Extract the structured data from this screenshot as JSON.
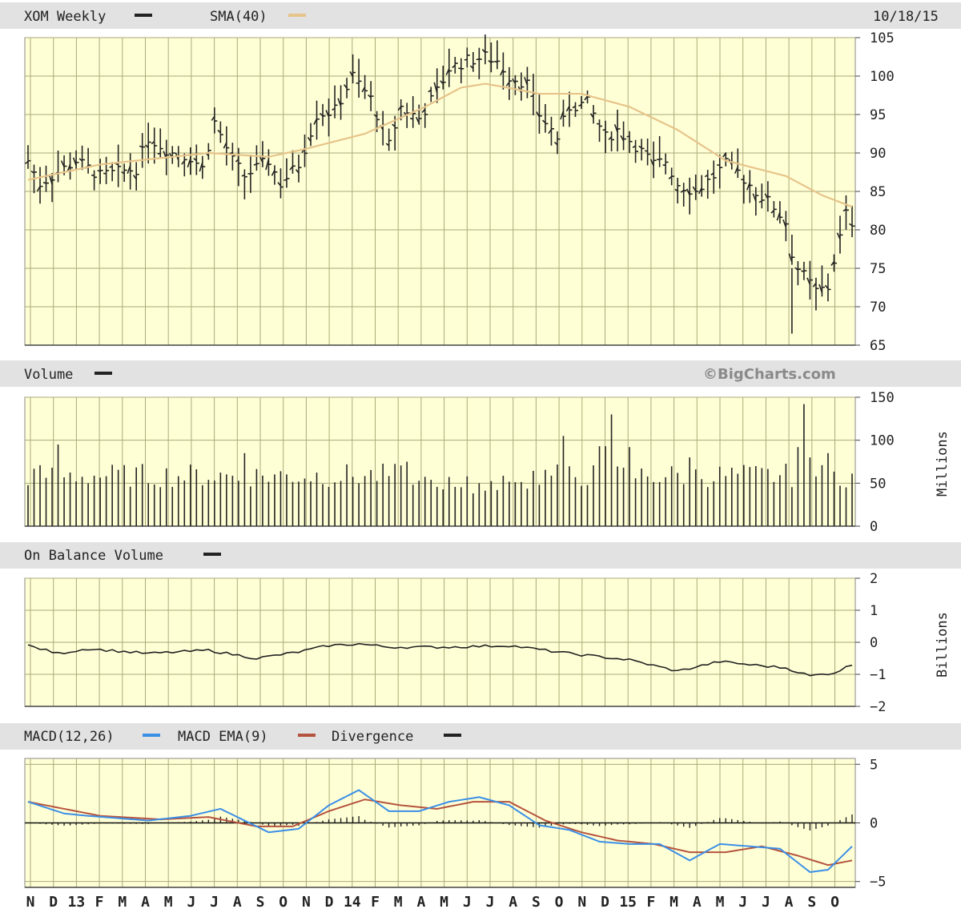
{
  "date_label": "10/18/15",
  "watermark": "©BigCharts.com",
  "months": [
    "N",
    "D",
    "13",
    "F",
    "M",
    "A",
    "M",
    "J",
    "J",
    "A",
    "S",
    "O",
    "N",
    "D",
    "14",
    "F",
    "M",
    "A",
    "M",
    "J",
    "J",
    "A",
    "S",
    "O",
    "N",
    "D",
    "15",
    "F",
    "M",
    "A",
    "M",
    "J",
    "J",
    "A",
    "S",
    "O"
  ],
  "panels": {
    "price": {
      "title": "XOM Weekly",
      "sma_label": "SMA(40)",
      "ticks": [
        "105",
        "100",
        "95",
        "90",
        "85",
        "80",
        "75",
        "70",
        "65"
      ]
    },
    "volume": {
      "title": "Volume",
      "unit": "Millions",
      "ticks": [
        "150",
        "100",
        "50",
        "0"
      ]
    },
    "obv": {
      "title": "On Balance Volume",
      "unit": "Billions",
      "ticks": [
        "2",
        "1",
        "0",
        "−1",
        "−2"
      ]
    },
    "macd": {
      "title": "MACD(12,26)",
      "ema_label": "MACD EMA(9)",
      "div_label": "Divergence",
      "ticks": [
        "5",
        "0",
        "−5"
      ]
    }
  },
  "colors": {
    "panel_bg": "#ffffd6",
    "grid": "#aaaa7a",
    "header_bg": "#e2e2e2",
    "sma": "#e6c48a",
    "macd": "#3b8fe6",
    "ema": "#b5543e",
    "bar": "#222222"
  },
  "chart_data": [
    {
      "type": "bar",
      "title": "XOM Weekly",
      "x_axis": "weekly, Nov 2012 – Oct 2015",
      "ylim": [
        65,
        105
      ],
      "series": [
        {
          "name": "XOM Weekly",
          "anchors": [
            [
              0,
              89
            ],
            [
              2,
              86
            ],
            [
              8,
              89
            ],
            [
              12,
              87
            ],
            [
              18,
              88
            ],
            [
              20,
              92
            ],
            [
              24,
              90
            ],
            [
              27,
              89.5
            ],
            [
              29,
              88
            ],
            [
              31,
              94
            ],
            [
              34,
              89
            ],
            [
              36,
              87
            ],
            [
              40,
              89
            ],
            [
              42,
              86
            ],
            [
              45,
              88.5
            ],
            [
              48,
              95
            ],
            [
              51,
              95.5
            ],
            [
              54,
              100
            ],
            [
              57,
              97
            ],
            [
              60,
              91
            ],
            [
              62,
              96
            ],
            [
              65,
              94.5
            ],
            [
              68,
              98
            ],
            [
              70,
              101
            ],
            [
              73,
              102
            ],
            [
              76,
              102.5
            ],
            [
              78,
              102
            ],
            [
              80,
              100
            ],
            [
              83,
              99
            ],
            [
              85,
              95
            ],
            [
              88,
              92
            ],
            [
              90,
              96
            ],
            [
              93,
              96.5
            ],
            [
              96,
              92
            ],
            [
              98,
              93
            ],
            [
              101,
              91
            ],
            [
              104,
              88.5
            ],
            [
              106,
              89
            ],
            [
              108,
              86
            ],
            [
              111,
              85
            ],
            [
              114,
              87
            ],
            [
              116,
              88.5
            ],
            [
              118,
              87.5
            ],
            [
              121,
              85
            ],
            [
              124,
              83
            ],
            [
              126,
              81
            ],
            [
              127,
              77
            ],
            [
              128,
              75
            ],
            [
              130,
              73
            ],
            [
              131,
              72
            ],
            [
              133,
              72.5
            ],
            [
              134,
              76
            ],
            [
              136,
              82
            ],
            [
              137,
              81
            ]
          ]
        },
        {
          "name": "SMA(40)",
          "anchors": [
            [
              0,
              86.5
            ],
            [
              12,
              88.5
            ],
            [
              30,
              90
            ],
            [
              40,
              89.5
            ],
            [
              46,
              90.5
            ],
            [
              56,
              92.5
            ],
            [
              66,
              96
            ],
            [
              72,
              98.5
            ],
            [
              76,
              99
            ],
            [
              79,
              98.6
            ],
            [
              85,
              97.7
            ],
            [
              92,
              97.7
            ],
            [
              100,
              96
            ],
            [
              108,
              93
            ],
            [
              116,
              89
            ],
            [
              126,
              87
            ],
            [
              132,
              84.5
            ],
            [
              137,
              83
            ]
          ]
        }
      ]
    },
    {
      "type": "bar",
      "title": "Volume",
      "unit": "Millions",
      "ylim": [
        0,
        150
      ],
      "spikes": [
        [
          5,
          95
        ],
        [
          36,
          85
        ],
        [
          63,
          75
        ],
        [
          89,
          105
        ],
        [
          95,
          93
        ],
        [
          96,
          93
        ],
        [
          97,
          130
        ],
        [
          100,
          92
        ],
        [
          110,
          80
        ],
        [
          128,
          92
        ],
        [
          129,
          142
        ],
        [
          130,
          80
        ],
        [
          133,
          85
        ]
      ]
    },
    {
      "type": "line",
      "title": "On Balance Volume",
      "unit": "Billions",
      "ylim": [
        -2,
        2
      ],
      "anchors": [
        [
          0,
          -0.1
        ],
        [
          5,
          -0.35
        ],
        [
          10,
          -0.2
        ],
        [
          20,
          -0.35
        ],
        [
          30,
          -0.25
        ],
        [
          38,
          -0.5
        ],
        [
          45,
          -0.3
        ],
        [
          50,
          -0.1
        ],
        [
          55,
          -0.05
        ],
        [
          60,
          -0.15
        ],
        [
          70,
          -0.15
        ],
        [
          80,
          -0.1
        ],
        [
          90,
          -0.35
        ],
        [
          100,
          -0.55
        ],
        [
          108,
          -0.9
        ],
        [
          115,
          -0.6
        ],
        [
          120,
          -0.7
        ],
        [
          126,
          -0.8
        ],
        [
          130,
          -1.05
        ],
        [
          134,
          -0.95
        ],
        [
          137,
          -0.7
        ]
      ]
    },
    {
      "type": "line",
      "title": "MACD(12,26)",
      "ylim": [
        -5,
        5
      ],
      "series": [
        {
          "name": "MACD(12,26)",
          "anchors": [
            [
              0,
              1.8
            ],
            [
              6,
              0.8
            ],
            [
              10,
              0.6
            ],
            [
              20,
              0.2
            ],
            [
              27,
              0.6
            ],
            [
              32,
              1.2
            ],
            [
              40,
              -0.8
            ],
            [
              45,
              -0.5
            ],
            [
              50,
              1.5
            ],
            [
              55,
              2.8
            ],
            [
              60,
              1.0
            ],
            [
              65,
              1.0
            ],
            [
              70,
              1.8
            ],
            [
              75,
              2.2
            ],
            [
              80,
              1.5
            ],
            [
              85,
              -0.2
            ],
            [
              90,
              -0.6
            ],
            [
              95,
              -1.6
            ],
            [
              100,
              -1.8
            ],
            [
              105,
              -1.8
            ],
            [
              110,
              -3.2
            ],
            [
              115,
              -1.8
            ],
            [
              120,
              -2.0
            ],
            [
              125,
              -2.2
            ],
            [
              130,
              -4.2
            ],
            [
              133,
              -4.0
            ],
            [
              137,
              -2.0
            ]
          ]
        },
        {
          "name": "MACD EMA(9)",
          "anchors": [
            [
              0,
              1.8
            ],
            [
              6,
              1.2
            ],
            [
              12,
              0.6
            ],
            [
              22,
              0.3
            ],
            [
              30,
              0.5
            ],
            [
              38,
              -0.3
            ],
            [
              44,
              -0.3
            ],
            [
              50,
              1.0
            ],
            [
              56,
              2.0
            ],
            [
              62,
              1.5
            ],
            [
              68,
              1.2
            ],
            [
              74,
              1.8
            ],
            [
              80,
              1.8
            ],
            [
              86,
              0.2
            ],
            [
              92,
              -0.8
            ],
            [
              98,
              -1.5
            ],
            [
              104,
              -1.8
            ],
            [
              110,
              -2.5
            ],
            [
              116,
              -2.5
            ],
            [
              122,
              -2.0
            ],
            [
              128,
              -2.8
            ],
            [
              133,
              -3.6
            ],
            [
              137,
              -3.2
            ]
          ]
        }
      ]
    }
  ]
}
